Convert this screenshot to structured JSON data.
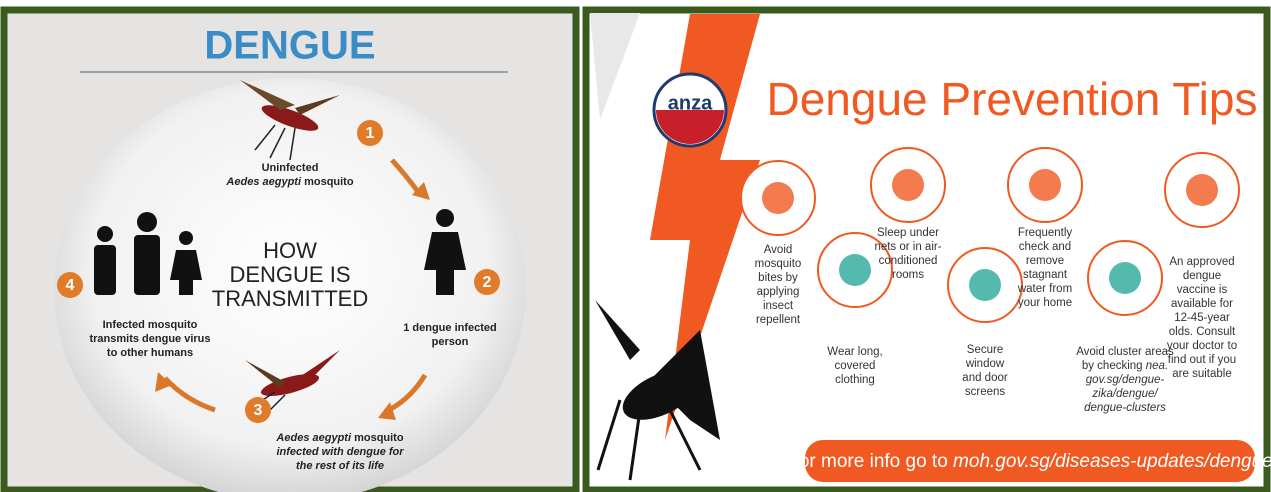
{
  "left": {
    "title": "DENGUE",
    "center_lines": [
      "HOW",
      "DENGUE IS",
      "TRANSMITTED"
    ],
    "steps": [
      {
        "number": "1",
        "lines": [
          [
            "Uninfected"
          ],
          [
            {
              "italic": "Aedes aegypti"
            },
            " mosquito"
          ]
        ]
      },
      {
        "number": "2",
        "lines": [
          [
            "1 dengue infected"
          ],
          [
            "person"
          ]
        ]
      },
      {
        "number": "3",
        "lines": [
          [
            {
              "italic": "Aedes aegypti"
            },
            " mosquito"
          ],
          [
            {
              "italic": "infected with dengue for"
            }
          ],
          [
            {
              "italic": "the rest of its life"
            }
          ]
        ]
      },
      {
        "number": "4",
        "lines": [
          [
            "Infected mosquito"
          ],
          [
            "transmits dengue virus"
          ],
          [
            "to other humans"
          ]
        ]
      }
    ]
  },
  "right": {
    "logo": "anza",
    "title": "Dengue Prevention Tips",
    "tips": [
      {
        "lines": [
          [
            "Avoid"
          ],
          [
            "mosquito"
          ],
          [
            "bites by"
          ],
          [
            "applying"
          ],
          [
            "insect"
          ],
          [
            "repellent"
          ]
        ]
      },
      {
        "lines": [
          [
            "Wear long,"
          ],
          [
            "covered"
          ],
          [
            "clothing"
          ]
        ]
      },
      {
        "lines": [
          [
            "Sleep under"
          ],
          [
            "nets or in air-"
          ],
          [
            "conditioned"
          ],
          [
            "rooms"
          ]
        ]
      },
      {
        "lines": [
          [
            "Secure"
          ],
          [
            "window"
          ],
          [
            "and door"
          ],
          [
            "screens"
          ]
        ]
      },
      {
        "lines": [
          [
            "Frequently"
          ],
          [
            "check and"
          ],
          [
            "remove"
          ],
          [
            "stagnant"
          ],
          [
            "water from"
          ],
          [
            "your home"
          ]
        ]
      },
      {
        "lines": [
          [
            "Avoid cluster areas"
          ],
          [
            "by checking ",
            {
              "italic": "nea."
            }
          ],
          [
            {
              "italic": "gov.sg/dengue-"
            }
          ],
          [
            {
              "italic": "zika/dengue/"
            }
          ],
          [
            {
              "italic": "dengue-clusters"
            }
          ]
        ]
      },
      {
        "lines": [
          [
            "An approved"
          ],
          [
            "dengue"
          ],
          [
            "vaccine is"
          ],
          [
            "available for"
          ],
          [
            "12-45-year"
          ],
          [
            "olds. Consult"
          ],
          [
            "your doctor to"
          ],
          [
            "find out if you"
          ],
          [
            "are suitable"
          ]
        ]
      }
    ],
    "footer": [
      "For more info go to ",
      {
        "italic": "moh.gov.sg/diseases-updates/dengue"
      }
    ]
  }
}
